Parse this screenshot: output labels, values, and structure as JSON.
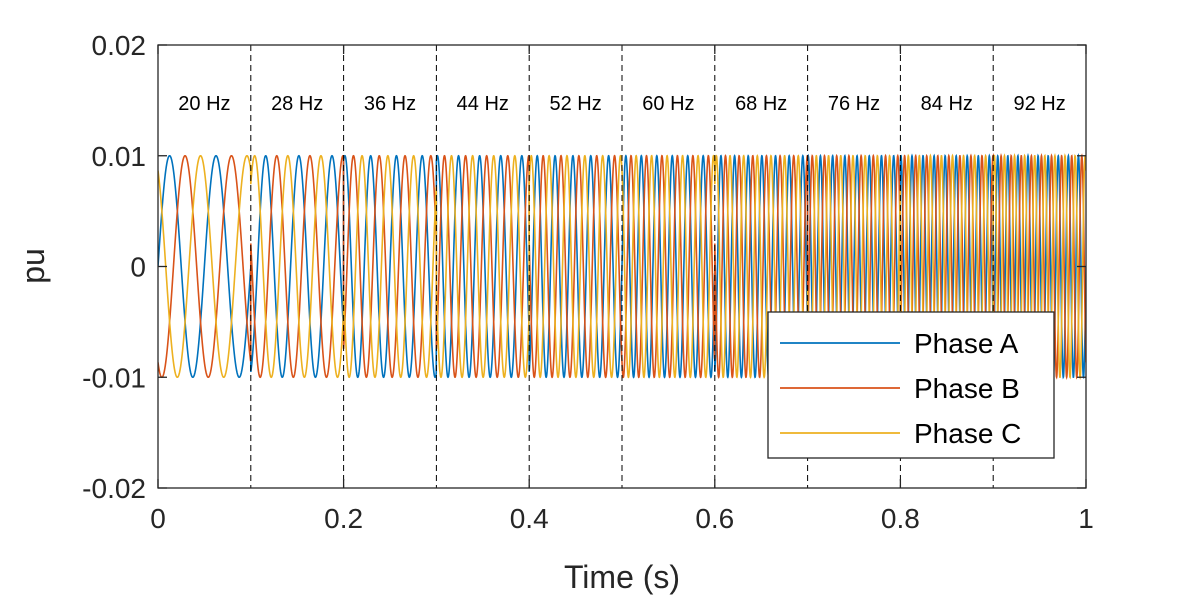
{
  "chart_data": {
    "type": "line",
    "title": "",
    "xlabel": "Time (s)",
    "ylabel": "pu",
    "xlim": [
      0,
      1
    ],
    "ylim": [
      -0.02,
      0.02
    ],
    "x_ticks": [
      0,
      0.2,
      0.4,
      0.6,
      0.8,
      1
    ],
    "x_tick_labels": [
      "0",
      "0.2",
      "0.4",
      "0.6",
      "0.8",
      "1"
    ],
    "y_ticks": [
      0.02,
      0.01,
      0,
      -0.01,
      -0.02
    ],
    "y_tick_labels": [
      "0.02",
      "0.01",
      "0",
      "-0.01",
      "-0.02"
    ],
    "grid": false,
    "legend_position": "bottom-right",
    "amplitude": 0.01,
    "segment_boundaries": [
      0.1,
      0.2,
      0.3,
      0.4,
      0.5,
      0.6,
      0.7,
      0.8,
      0.9
    ],
    "segments": [
      {
        "start": 0.0,
        "end": 0.1,
        "frequency": 20,
        "label": "20 Hz"
      },
      {
        "start": 0.1,
        "end": 0.2,
        "frequency": 28,
        "label": "28 Hz"
      },
      {
        "start": 0.2,
        "end": 0.3,
        "frequency": 36,
        "label": "36 Hz"
      },
      {
        "start": 0.3,
        "end": 0.4,
        "frequency": 44,
        "label": "44 Hz"
      },
      {
        "start": 0.4,
        "end": 0.5,
        "frequency": 52,
        "label": "52 Hz"
      },
      {
        "start": 0.5,
        "end": 0.6,
        "frequency": 60,
        "label": "60 Hz"
      },
      {
        "start": 0.6,
        "end": 0.7,
        "frequency": 68,
        "label": "68 Hz"
      },
      {
        "start": 0.7,
        "end": 0.8,
        "frequency": 76,
        "label": "76 Hz"
      },
      {
        "start": 0.8,
        "end": 0.9,
        "frequency": 84,
        "label": "84 Hz"
      },
      {
        "start": 0.9,
        "end": 1.0,
        "frequency": 92,
        "label": "92 Hz"
      }
    ],
    "series": [
      {
        "name": "Phase A",
        "phase_deg": 0,
        "color": "#0072BD"
      },
      {
        "name": "Phase B",
        "phase_deg": -120,
        "color": "#D95319"
      },
      {
        "name": "Phase C",
        "phase_deg": 120,
        "color": "#EDB120"
      }
    ]
  }
}
